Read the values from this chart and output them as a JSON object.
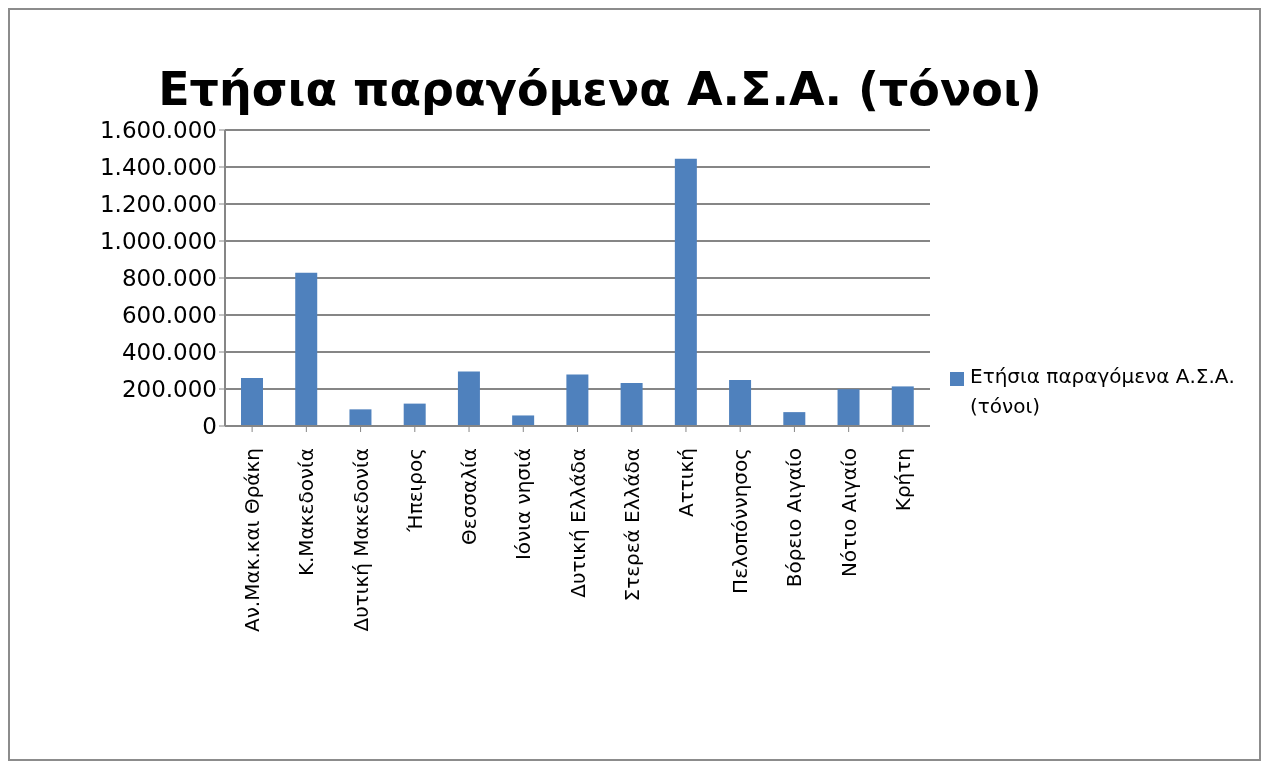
{
  "chart_data": {
    "type": "bar",
    "title": "Ετήσια παραγόμενα Α.Σ.Α. (τόνοι)",
    "categories": [
      "Αν.Μακ.και  Θράκη",
      "Κ.Μακεδονία",
      "Δυτική Μακεδονία",
      "Ήπειρος",
      "Θεσσαλία",
      "Ιόνια νησιά",
      "Δυτική Ελλάδα",
      "Στερεά Ελλάδα",
      "Αττική",
      "Πελοπόννησος",
      "Βόρειο Αιγαίο",
      "Νότιο Αιγαίο",
      "Κρήτη"
    ],
    "series": [
      {
        "name": "Ετήσια παραγόμενα Α.Σ.Α. (τόνοι)",
        "color": "#4f81bd",
        "values": [
          260000,
          828000,
          90000,
          121000,
          294000,
          57000,
          279000,
          232000,
          1445000,
          248000,
          75000,
          199000,
          214000
        ]
      }
    ],
    "ylim": [
      0,
      1600000
    ],
    "yticks": [
      0,
      {
        "value": 200000,
        "label": "200.000"
      },
      {
        "value": 400000,
        "label": "400.000"
      },
      {
        "value": 600000,
        "label": "600.000"
      },
      {
        "value": 800000,
        "label": "800.000"
      },
      {
        "value": 1000000,
        "label": "1.000.000"
      },
      {
        "value": 1200000,
        "label": "1.200.000"
      },
      {
        "value": 1400000,
        "label": "1.400.000"
      },
      {
        "value": 1600000,
        "label": "1.600.000"
      }
    ],
    "grid": "y",
    "legend": "right"
  }
}
